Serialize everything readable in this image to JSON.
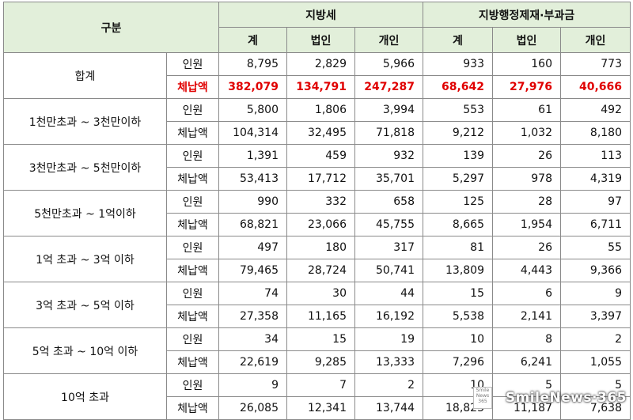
{
  "header": {
    "category": "구분",
    "group_local_tax": "지방세",
    "group_admin": "지방행정제재·부과금",
    "sub": [
      "계",
      "법인",
      "개인",
      "계",
      "법인",
      "개인"
    ]
  },
  "labels": {
    "people": "인원",
    "amount": "체납액"
  },
  "rows": [
    {
      "category": "합계",
      "people": [
        "8,795",
        "2,829",
        "5,966",
        "933",
        "160",
        "773"
      ],
      "amount": [
        "382,079",
        "134,791",
        "247,287",
        "68,642",
        "27,976",
        "40,666"
      ]
    },
    {
      "category": "1천만초과 ~ 3천만이하",
      "people": [
        "5,800",
        "1,806",
        "3,994",
        "553",
        "61",
        "492"
      ],
      "amount": [
        "104,314",
        "32,495",
        "71,818",
        "9,212",
        "1,032",
        "8,180"
      ]
    },
    {
      "category": "3천만초과 ~ 5천만이하",
      "people": [
        "1,391",
        "459",
        "932",
        "139",
        "26",
        "113"
      ],
      "amount": [
        "53,413",
        "17,712",
        "35,701",
        "5,297",
        "978",
        "4,319"
      ]
    },
    {
      "category": "5천만초과 ~ 1억이하",
      "people": [
        "990",
        "332",
        "658",
        "125",
        "28",
        "97"
      ],
      "amount": [
        "68,821",
        "23,066",
        "45,755",
        "8,665",
        "1,954",
        "6,711"
      ]
    },
    {
      "category": "1억 초과 ~ 3억 이하",
      "people": [
        "497",
        "180",
        "317",
        "81",
        "26",
        "55"
      ],
      "amount": [
        "79,465",
        "28,724",
        "50,741",
        "13,809",
        "4,443",
        "9,366"
      ]
    },
    {
      "category": "3억 초과 ~ 5억 이하",
      "people": [
        "74",
        "30",
        "44",
        "15",
        "6",
        "9"
      ],
      "amount": [
        "27,358",
        "11,165",
        "16,192",
        "5,538",
        "2,141",
        "3,397"
      ]
    },
    {
      "category": "5억 초과 ~ 10억 이하",
      "people": [
        "34",
        "15",
        "19",
        "10",
        "8",
        "2"
      ],
      "amount": [
        "22,619",
        "9,285",
        "13,333",
        "7,296",
        "6,241",
        "1,055"
      ]
    },
    {
      "category": "10억 초과",
      "people": [
        "9",
        "7",
        "2",
        "10",
        "5",
        "5"
      ],
      "amount": [
        "26,085",
        "12,341",
        "13,744",
        "18,823",
        "11,187",
        "7,638"
      ]
    }
  ],
  "watermark": "SmileNews·365",
  "watermark_logo": "Smile News 365"
}
